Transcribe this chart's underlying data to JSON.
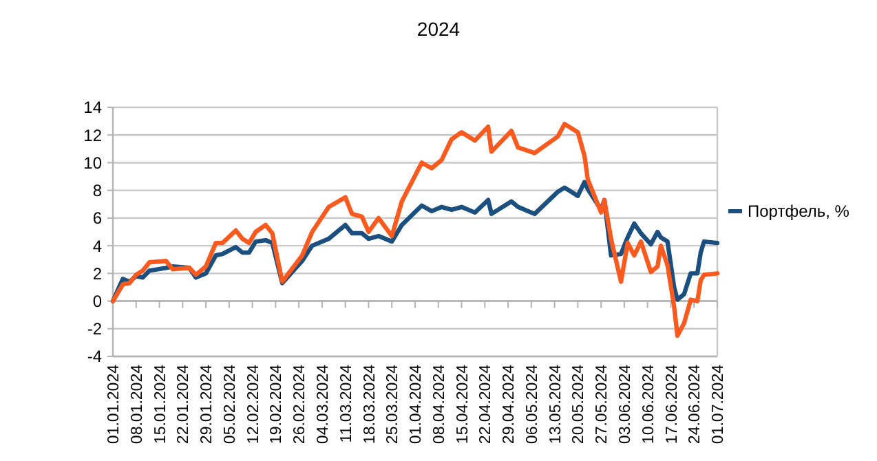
{
  "chart_data": {
    "type": "line",
    "title": "2024",
    "x": [
      "2024-01-01",
      "2024-01-04",
      "2024-01-06",
      "2024-01-08",
      "2024-01-10",
      "2024-01-12",
      "2024-01-17",
      "2024-01-19",
      "2024-01-24",
      "2024-01-26",
      "2024-01-29",
      "2024-02-01",
      "2024-02-03",
      "2024-02-07",
      "2024-02-09",
      "2024-02-11",
      "2024-02-13",
      "2024-02-16",
      "2024-02-18",
      "2024-02-21",
      "2024-02-27",
      "2024-03-01",
      "2024-03-06",
      "2024-03-11",
      "2024-03-13",
      "2024-03-16",
      "2024-03-18",
      "2024-03-21",
      "2024-03-25",
      "2024-03-28",
      "2024-04-03",
      "2024-04-06",
      "2024-04-09",
      "2024-04-12",
      "2024-04-15",
      "2024-04-19",
      "2024-04-23",
      "2024-04-24",
      "2024-04-30",
      "2024-05-02",
      "2024-05-07",
      "2024-05-14",
      "2024-05-16",
      "2024-05-20",
      "2024-05-22",
      "2024-05-23",
      "2024-05-27",
      "2024-05-28",
      "2024-05-30",
      "2024-06-02",
      "2024-06-04",
      "2024-06-06",
      "2024-06-08",
      "2024-06-11",
      "2024-06-13",
      "2024-06-14",
      "2024-06-16",
      "2024-06-18",
      "2024-06-19",
      "2024-06-21",
      "2024-06-23",
      "2024-06-25",
      "2024-06-26",
      "2024-06-27",
      "2024-07-01"
    ],
    "series": [
      {
        "name": "Портфель, %",
        "color": "#1b4f80",
        "values": [
          0,
          1.6,
          1.4,
          1.8,
          1.7,
          2.2,
          2.4,
          2.5,
          2.4,
          1.7,
          2.0,
          3.3,
          3.4,
          3.9,
          3.5,
          3.5,
          4.3,
          4.4,
          4.2,
          1.3,
          2.9,
          4.0,
          4.5,
          5.5,
          4.9,
          4.9,
          4.5,
          4.7,
          4.3,
          5.5,
          6.9,
          6.5,
          6.8,
          6.6,
          6.8,
          6.4,
          7.3,
          6.3,
          7.2,
          6.8,
          6.3,
          7.9,
          8.2,
          7.6,
          8.6,
          8.1,
          6.6,
          7.3,
          3.3,
          3.4,
          4.6,
          5.6,
          4.9,
          4.1,
          5.0,
          4.6,
          4.3,
          1.0,
          0.1,
          0.5,
          2.0,
          2.0,
          3.5,
          4.3,
          4.2
        ]
      },
      {
        "color": "#fa5a1e",
        "values": [
          0,
          1.2,
          1.3,
          1.9,
          2.2,
          2.8,
          2.9,
          2.3,
          2.4,
          1.9,
          2.5,
          4.2,
          4.2,
          5.1,
          4.5,
          4.2,
          5.0,
          5.5,
          4.9,
          1.4,
          3.3,
          5.0,
          6.8,
          7.5,
          6.3,
          6.1,
          5.0,
          6.0,
          4.7,
          7.2,
          10.0,
          9.6,
          10.2,
          11.7,
          12.2,
          11.6,
          12.6,
          10.8,
          12.3,
          11.1,
          10.7,
          11.9,
          12.8,
          12.2,
          10.5,
          8.8,
          6.4,
          7.3,
          4.5,
          1.4,
          4.2,
          3.3,
          4.3,
          2.1,
          2.5,
          4.0,
          2.6,
          -0.4,
          -2.5,
          -1.6,
          0.1,
          0.0,
          1.5,
          1.9,
          2.0
        ]
      }
    ],
    "xlim": [
      "2024-01-01",
      "2024-07-01"
    ],
    "xticks": [
      {
        "value": "2024-01-01",
        "label": "01.01.2024"
      },
      {
        "value": "2024-01-08",
        "label": "08.01.2024"
      },
      {
        "value": "2024-01-15",
        "label": "15.01.2024"
      },
      {
        "value": "2024-01-22",
        "label": "22.01.2024"
      },
      {
        "value": "2024-01-29",
        "label": "29.01.2024"
      },
      {
        "value": "2024-02-05",
        "label": "05.02.2024"
      },
      {
        "value": "2024-02-12",
        "label": "12.02.2024"
      },
      {
        "value": "2024-02-19",
        "label": "19.02.2024"
      },
      {
        "value": "2024-02-26",
        "label": "26.02.2024"
      },
      {
        "value": "2024-03-04",
        "label": "04.03.2024"
      },
      {
        "value": "2024-03-11",
        "label": "11.03.2024"
      },
      {
        "value": "2024-03-18",
        "label": "18.03.2024"
      },
      {
        "value": "2024-03-25",
        "label": "25.03.2024"
      },
      {
        "value": "2024-04-01",
        "label": "01.04.2024"
      },
      {
        "value": "2024-04-08",
        "label": "08.04.2024"
      },
      {
        "value": "2024-04-15",
        "label": "15.04.2024"
      },
      {
        "value": "2024-04-22",
        "label": "22.04.2024"
      },
      {
        "value": "2024-04-29",
        "label": "29.04.2024"
      },
      {
        "value": "2024-05-06",
        "label": "06.05.2024"
      },
      {
        "value": "2024-05-13",
        "label": "13.05.2024"
      },
      {
        "value": "2024-05-20",
        "label": "20.05.2024"
      },
      {
        "value": "2024-05-27",
        "label": "27.05.2024"
      },
      {
        "value": "2024-06-03",
        "label": "03.06.2024"
      },
      {
        "value": "2024-06-10",
        "label": "10.06.2024"
      },
      {
        "value": "2024-06-17",
        "label": "17.06.2024"
      },
      {
        "value": "2024-06-24",
        "label": "24.06.2024"
      },
      {
        "value": "2024-07-01",
        "label": "01.07.2024"
      }
    ],
    "ylim": [
      -4,
      14
    ],
    "yticks": [
      -4,
      -2,
      0,
      2,
      4,
      6,
      8,
      10,
      12,
      14
    ],
    "grid": "y",
    "legend": "right",
    "marker": "none",
    "line_style": "solid"
  }
}
